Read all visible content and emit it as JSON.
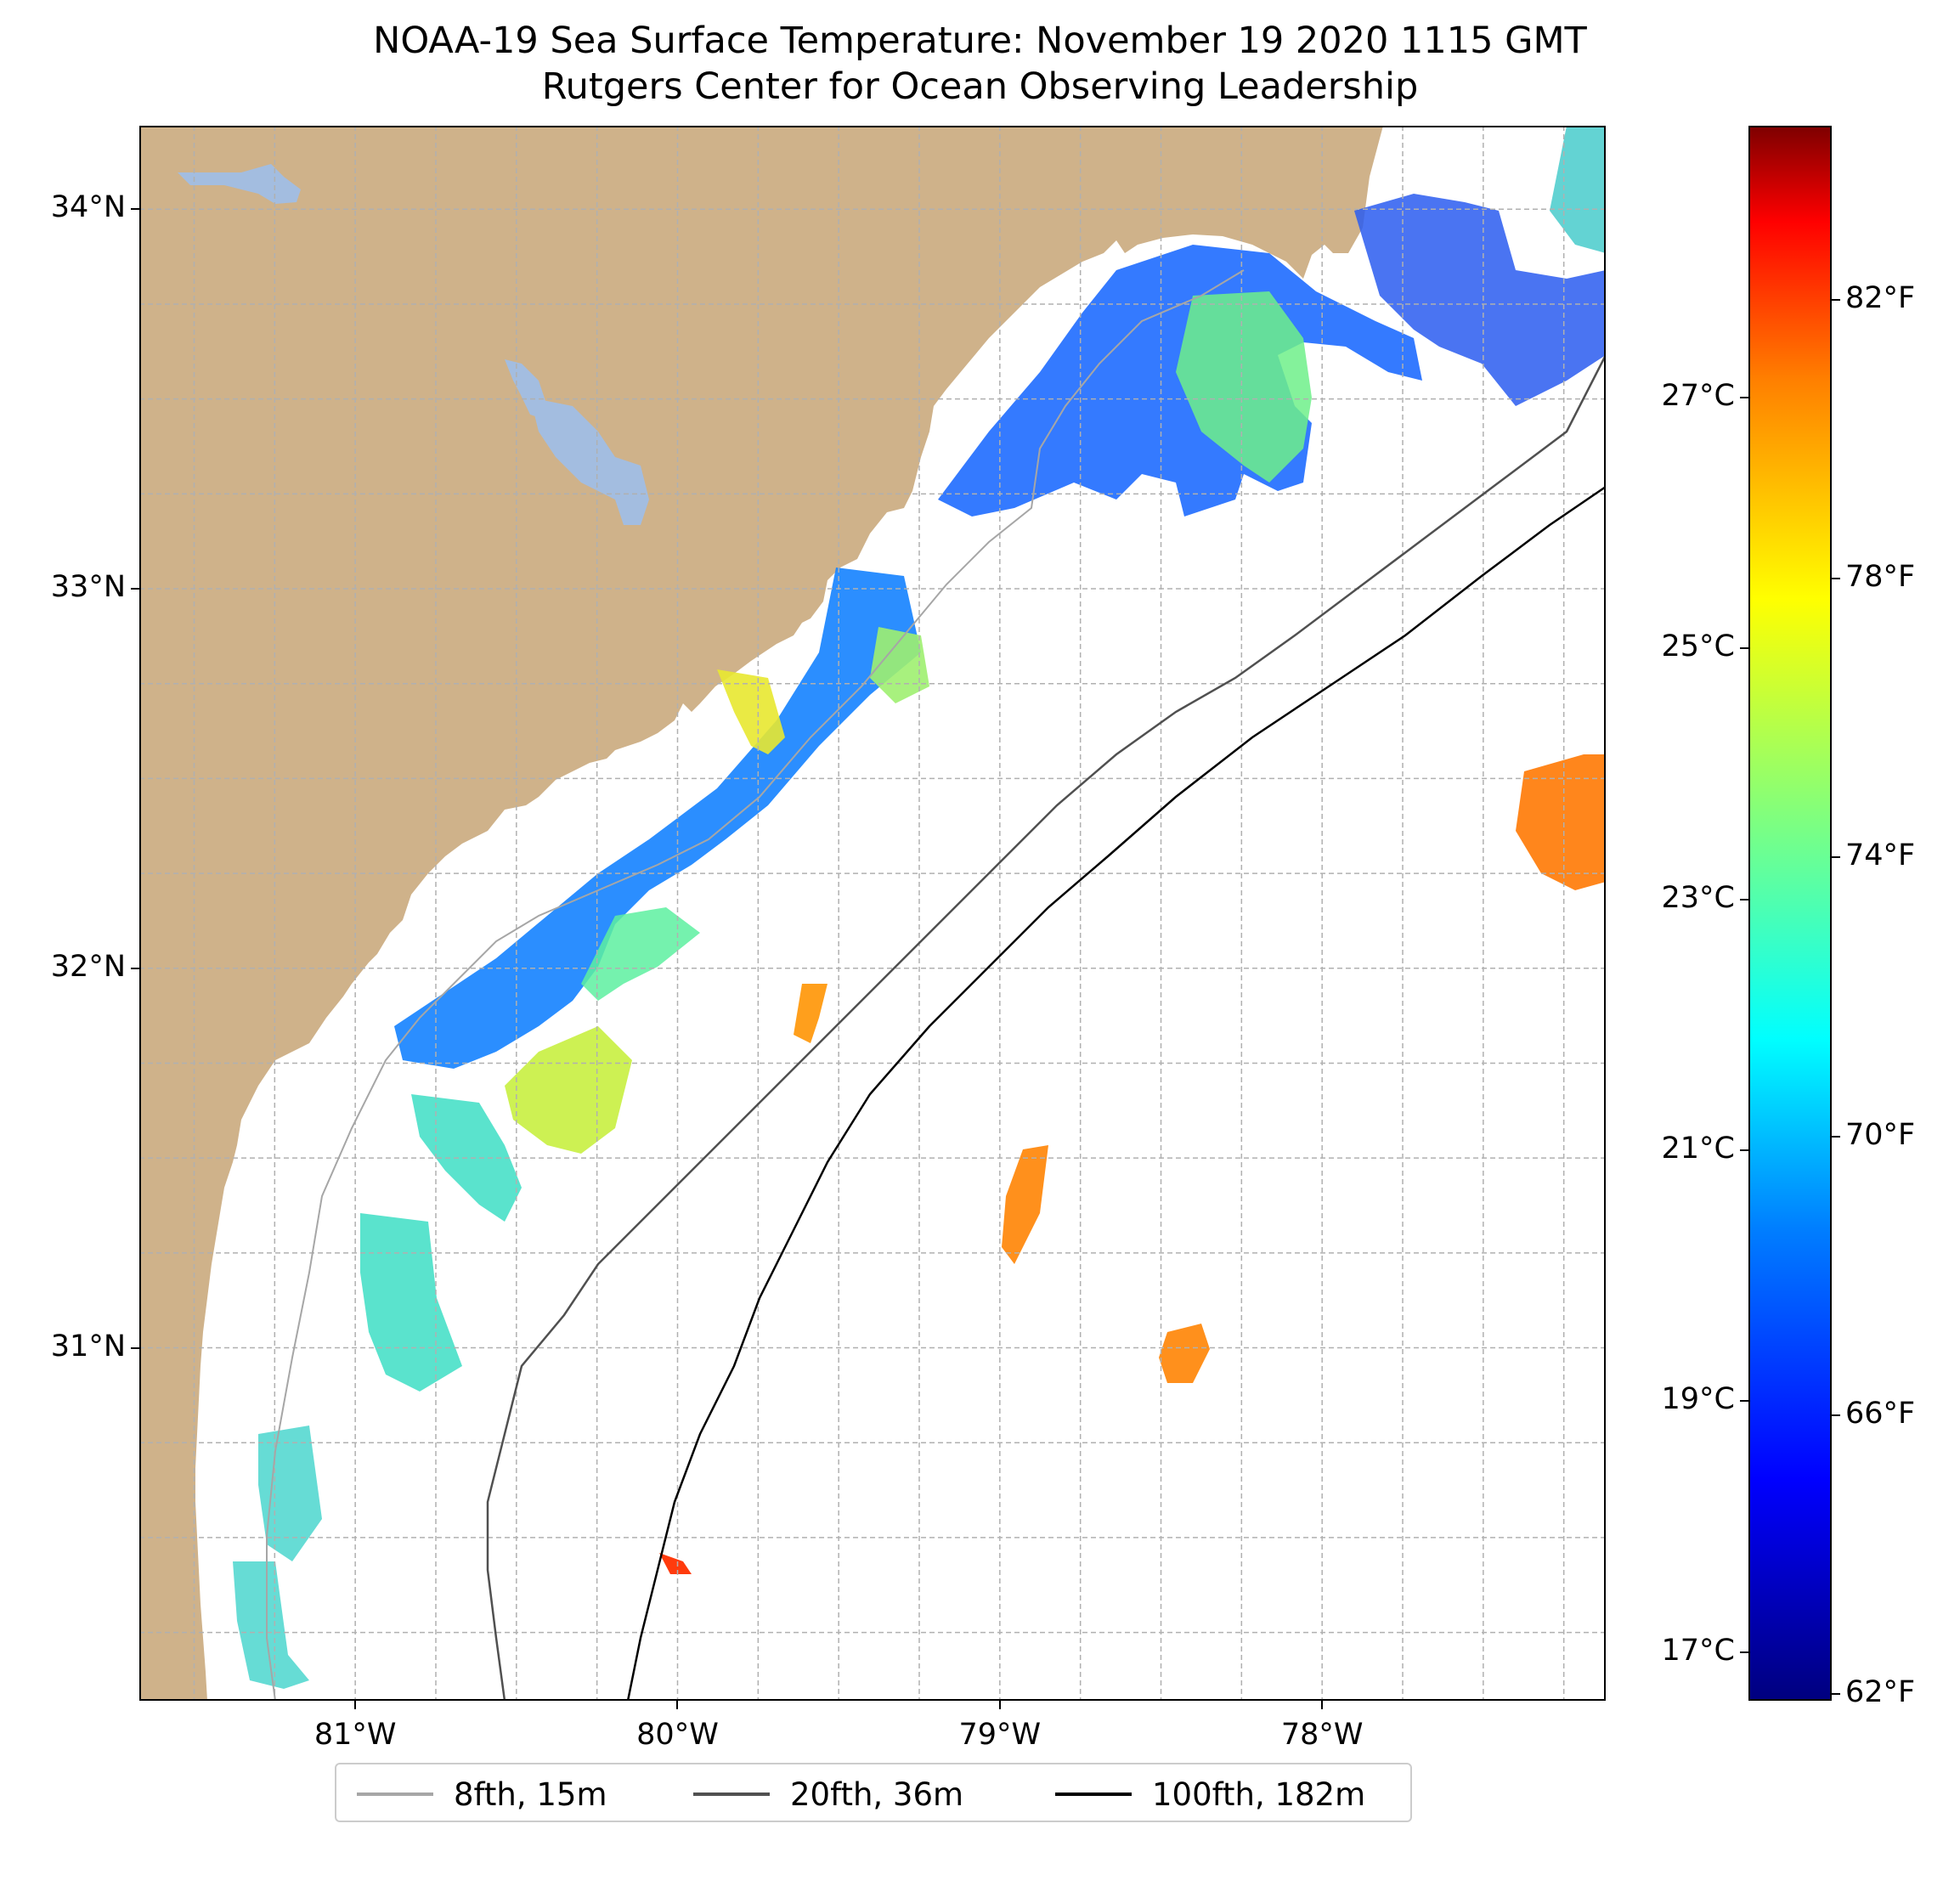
{
  "title": {
    "line1": "NOAA-19 Sea Surface Temperature: November 19 2020 1115 GMT",
    "line2": "Rutgers Center for Ocean Observing Leadership"
  },
  "map": {
    "lat_ticks": [
      {
        "value": 34,
        "label": "34°N"
      },
      {
        "value": 33,
        "label": "33°N"
      },
      {
        "value": 32,
        "label": "32°N"
      },
      {
        "value": 31,
        "label": "31°N"
      }
    ],
    "lon_ticks": [
      {
        "value": -81,
        "label": "81°W"
      },
      {
        "value": -80,
        "label": "80°W"
      },
      {
        "value": -79,
        "label": "79°W"
      },
      {
        "value": -78,
        "label": "78°W"
      }
    ],
    "extent": {
      "lon_min": -81.67,
      "lon_max": -77.12,
      "lat_min": 30.07,
      "lat_max": 34.22
    },
    "colors": {
      "land": "#cfb28a",
      "water": "#a3bde0",
      "ocean": "#ffffff",
      "grid": "#b0b0b0"
    }
  },
  "colorbar": {
    "colormap": "jet",
    "fahrenheit_range": [
      61.9,
      84.5
    ],
    "fahrenheit_ticks": [
      {
        "value": 62,
        "label": "62°F"
      },
      {
        "value": 66,
        "label": "66°F"
      },
      {
        "value": 70,
        "label": "70°F"
      },
      {
        "value": 74,
        "label": "74°F"
      },
      {
        "value": 78,
        "label": "78°F"
      },
      {
        "value": 82,
        "label": "82°F"
      }
    ],
    "celsius_ticks": [
      {
        "value": 17,
        "label": "17°C"
      },
      {
        "value": 19,
        "label": "19°C"
      },
      {
        "value": 21,
        "label": "21°C"
      },
      {
        "value": 23,
        "label": "23°C"
      },
      {
        "value": 25,
        "label": "25°C"
      },
      {
        "value": 27,
        "label": "27°C"
      }
    ]
  },
  "legend": {
    "items": [
      {
        "label": "8fth, 15m",
        "color": "#a6a6a6"
      },
      {
        "label": "20fth, 36m",
        "color": "#505050"
      },
      {
        "label": "100fth, 182m",
        "color": "#000000"
      }
    ]
  }
}
